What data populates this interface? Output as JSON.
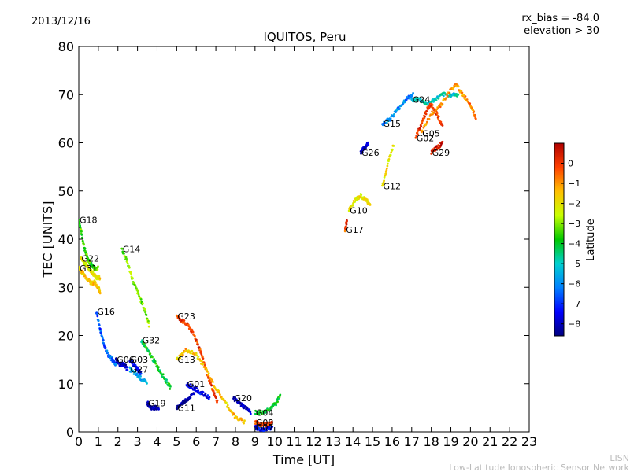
{
  "header": {
    "date": "2013/12/16",
    "rx_bias": "rx_bias = -84.0",
    "elevation": "elevation > 30"
  },
  "watermark": {
    "line1": "LISN",
    "line2": "Low-Latitude Ionospheric Sensor Network"
  },
  "chart_data": {
    "type": "scatter",
    "title": "IQUITOS, Peru",
    "xlabel": "Time [UT]",
    "ylabel": "TEC [UNITS]",
    "xlim": [
      0,
      23
    ],
    "ylim": [
      0,
      80
    ],
    "xticks": [
      0,
      1,
      2,
      3,
      4,
      5,
      6,
      7,
      8,
      9,
      10,
      11,
      12,
      13,
      14,
      15,
      16,
      17,
      18,
      19,
      20,
      21,
      22,
      23
    ],
    "yticks": [
      0,
      10,
      20,
      30,
      40,
      50,
      60,
      70,
      80
    ],
    "grid": false,
    "colorbar": {
      "label": "Latitude",
      "min": -8.6,
      "max": 1.0,
      "ticks": [
        0,
        -1,
        -2,
        -3,
        -4,
        -5,
        -6,
        -7,
        -8
      ],
      "tick_labels": [
        "0",
        "−1",
        "−2",
        "−3",
        "−4",
        "−5",
        "−6",
        "−7",
        "−8"
      ]
    },
    "series": [
      {
        "name": "G18",
        "color_lat": -3.5,
        "points": [
          [
            0.0,
            44
          ],
          [
            0.15,
            41
          ],
          [
            0.3,
            38
          ],
          [
            0.45,
            36
          ],
          [
            0.6,
            35
          ],
          [
            0.8,
            34
          ],
          [
            1.0,
            34
          ]
        ]
      },
      {
        "name": "G22",
        "color_lat": -2.0,
        "points": [
          [
            0.1,
            36
          ],
          [
            0.3,
            35
          ],
          [
            0.5,
            34
          ],
          [
            0.7,
            33
          ],
          [
            0.9,
            32
          ],
          [
            1.1,
            32
          ]
        ]
      },
      {
        "name": "G31",
        "color_lat": -1.5,
        "points": [
          [
            0.0,
            34
          ],
          [
            0.2,
            33
          ],
          [
            0.4,
            32
          ],
          [
            0.6,
            31
          ],
          [
            0.8,
            31
          ],
          [
            1.0,
            30
          ],
          [
            1.1,
            29
          ]
        ]
      },
      {
        "name": "G16",
        "color_lat": -6.5,
        "points": [
          [
            0.9,
            25
          ],
          [
            1.1,
            21
          ],
          [
            1.3,
            18
          ],
          [
            1.5,
            16
          ],
          [
            1.7,
            15
          ],
          [
            1.9,
            14
          ]
        ]
      },
      {
        "name": "G14",
        "color_lat": -3.0,
        "points": [
          [
            2.2,
            38
          ],
          [
            2.5,
            35
          ],
          [
            2.8,
            31
          ],
          [
            3.1,
            28
          ],
          [
            3.4,
            25
          ],
          [
            3.6,
            22
          ]
        ]
      },
      {
        "name": "G06",
        "color_lat": -8.0,
        "points": [
          [
            1.9,
            15
          ],
          [
            2.1,
            14
          ],
          [
            2.3,
            14
          ],
          [
            2.5,
            13
          ]
        ]
      },
      {
        "name": "G03",
        "color_lat": -7.5,
        "points": [
          [
            2.6,
            15
          ],
          [
            2.8,
            14
          ],
          [
            3.0,
            13
          ],
          [
            3.2,
            12
          ]
        ]
      },
      {
        "name": "G27",
        "color_lat": -5.5,
        "points": [
          [
            2.6,
            13
          ],
          [
            2.9,
            12
          ],
          [
            3.2,
            11
          ],
          [
            3.5,
            10
          ]
        ]
      },
      {
        "name": "G32",
        "color_lat": -4.0,
        "points": [
          [
            3.2,
            19
          ],
          [
            3.5,
            17
          ],
          [
            3.8,
            15
          ],
          [
            4.1,
            13
          ],
          [
            4.4,
            11
          ],
          [
            4.7,
            9
          ]
        ]
      },
      {
        "name": "G19",
        "color_lat": -8.0,
        "points": [
          [
            3.5,
            6
          ],
          [
            3.7,
            5
          ],
          [
            3.9,
            5
          ],
          [
            4.1,
            5
          ]
        ]
      },
      {
        "name": "G23",
        "color_lat": 0.0,
        "points": [
          [
            5.0,
            24
          ],
          [
            5.3,
            23
          ],
          [
            5.6,
            22
          ],
          [
            5.9,
            20
          ],
          [
            6.2,
            17
          ],
          [
            6.5,
            13
          ],
          [
            6.8,
            9
          ],
          [
            7.1,
            6
          ]
        ]
      },
      {
        "name": "G13",
        "color_lat": -1.5,
        "points": [
          [
            5.0,
            15
          ],
          [
            5.5,
            17
          ],
          [
            6.0,
            16
          ],
          [
            6.5,
            13
          ],
          [
            7.0,
            9
          ],
          [
            7.5,
            6
          ],
          [
            8.0,
            3
          ],
          [
            8.5,
            2
          ]
        ]
      },
      {
        "name": "G11",
        "color_lat": -8.2,
        "points": [
          [
            5.0,
            5
          ],
          [
            5.3,
            6
          ],
          [
            5.6,
            7
          ],
          [
            5.9,
            8
          ]
        ]
      },
      {
        "name": "G01",
        "color_lat": -7.5,
        "points": [
          [
            5.5,
            10
          ],
          [
            5.9,
            9
          ],
          [
            6.3,
            8
          ],
          [
            6.7,
            7
          ]
        ]
      },
      {
        "name": "G20",
        "color_lat": -8.0,
        "points": [
          [
            7.9,
            7
          ],
          [
            8.2,
            6
          ],
          [
            8.5,
            5
          ],
          [
            8.8,
            4
          ]
        ]
      },
      {
        "name": "G08",
        "color_lat": 0.0,
        "points": [
          [
            9.0,
            2
          ],
          [
            9.3,
            1.5
          ],
          [
            9.6,
            1.5
          ],
          [
            9.9,
            2
          ]
        ]
      },
      {
        "name": "G07",
        "color_lat": -7.5,
        "points": [
          [
            9.0,
            1
          ],
          [
            9.3,
            0.5
          ],
          [
            9.6,
            0.5
          ],
          [
            9.9,
            1
          ]
        ]
      },
      {
        "name": "G04",
        "color_lat": -4.0,
        "points": [
          [
            9.0,
            4
          ],
          [
            9.4,
            4
          ],
          [
            9.8,
            5
          ],
          [
            10.1,
            6
          ],
          [
            10.3,
            8
          ]
        ]
      },
      {
        "name": "G10",
        "color_lat": -2.0,
        "points": [
          [
            13.8,
            46
          ],
          [
            14.1,
            48
          ],
          [
            14.4,
            49
          ],
          [
            14.7,
            48
          ],
          [
            14.9,
            47
          ]
        ]
      },
      {
        "name": "G17",
        "color_lat": 0.0,
        "points": [
          [
            13.6,
            42
          ],
          [
            13.7,
            44
          ]
        ]
      },
      {
        "name": "G12",
        "color_lat": -2.0,
        "points": [
          [
            15.5,
            51
          ],
          [
            15.8,
            56
          ],
          [
            16.1,
            60
          ]
        ]
      },
      {
        "name": "G26",
        "color_lat": -8.0,
        "points": [
          [
            14.4,
            58
          ],
          [
            14.6,
            59
          ],
          [
            14.8,
            60
          ]
        ]
      },
      {
        "name": "G15",
        "color_lat": -6.0,
        "points": [
          [
            15.5,
            64
          ],
          [
            15.9,
            65
          ],
          [
            16.3,
            67
          ],
          [
            16.7,
            69
          ],
          [
            17.1,
            70
          ]
        ]
      },
      {
        "name": "G24",
        "color_lat": -5.0,
        "points": [
          [
            17.0,
            69
          ],
          [
            17.4,
            69
          ],
          [
            17.8,
            68
          ],
          [
            18.2,
            69
          ],
          [
            18.6,
            70
          ],
          [
            19.0,
            70
          ],
          [
            19.4,
            70
          ]
        ]
      },
      {
        "name": "G02",
        "color_lat": 0.0,
        "points": [
          [
            17.2,
            61
          ],
          [
            17.5,
            64
          ],
          [
            17.8,
            67
          ],
          [
            18.0,
            68
          ],
          [
            18.3,
            66
          ],
          [
            18.6,
            63
          ]
        ]
      },
      {
        "name": "G29",
        "color_lat": 0.5,
        "points": [
          [
            18.0,
            58
          ],
          [
            18.3,
            59
          ],
          [
            18.6,
            60
          ]
        ]
      },
      {
        "name": "G05",
        "color_lat": -1.0,
        "points": [
          [
            17.5,
            62
          ],
          [
            18.0,
            66
          ],
          [
            18.5,
            68
          ],
          [
            19.0,
            71
          ],
          [
            19.3,
            72
          ],
          [
            19.6,
            70
          ],
          [
            20.0,
            68
          ],
          [
            20.3,
            65
          ]
        ]
      }
    ]
  }
}
